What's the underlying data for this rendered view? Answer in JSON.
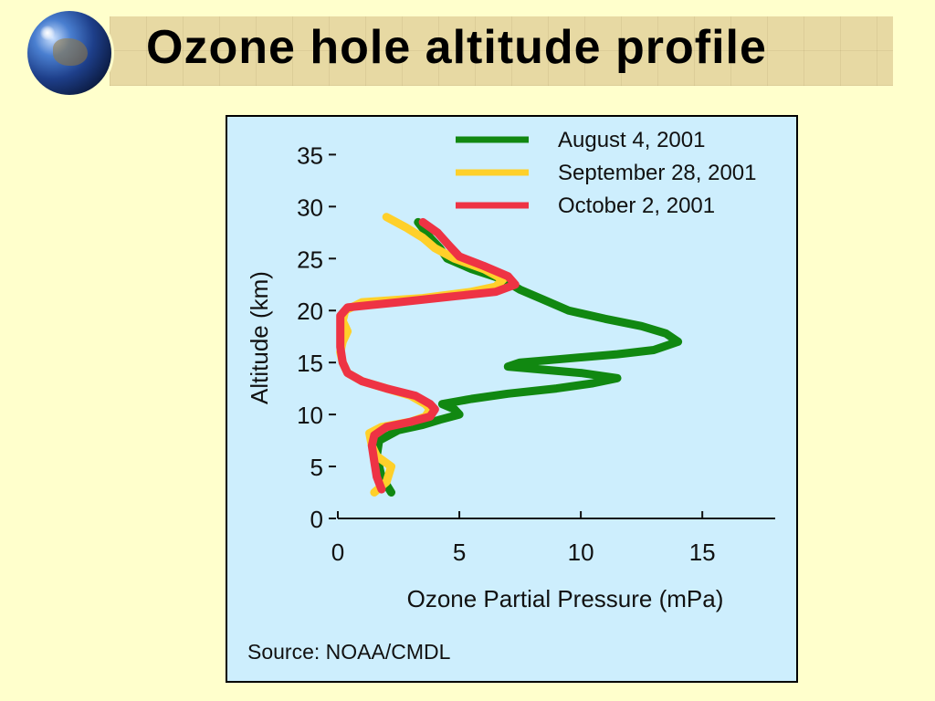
{
  "slide": {
    "title": "Ozone hole altitude profile"
  },
  "chart_data": {
    "type": "line",
    "xlabel": "Ozone Partial Pressure (mPa)",
    "ylabel": "Altitude (km)",
    "xlim": [
      0,
      18
    ],
    "ylim": [
      0,
      36
    ],
    "xticks": [
      0,
      5,
      10,
      15
    ],
    "yticks": [
      0,
      5,
      10,
      15,
      20,
      25,
      30,
      35
    ],
    "source": "Source: NOAA/CMDL",
    "legend_position": "top-right",
    "grid": false,
    "series": [
      {
        "name": "August 4, 2001",
        "color": "#118811",
        "points": [
          [
            2.2,
            2.5
          ],
          [
            1.8,
            4
          ],
          [
            1.6,
            6
          ],
          [
            1.7,
            7.5
          ],
          [
            2.5,
            8.5
          ],
          [
            3.5,
            9
          ],
          [
            4.2,
            9.5
          ],
          [
            5.0,
            10
          ],
          [
            4.8,
            10.5
          ],
          [
            4.3,
            11
          ],
          [
            5.5,
            11.5
          ],
          [
            7.0,
            12
          ],
          [
            9.0,
            12.5
          ],
          [
            10.5,
            13
          ],
          [
            11.5,
            13.5
          ],
          [
            10.0,
            14
          ],
          [
            8.5,
            14.3
          ],
          [
            7.0,
            14.6
          ],
          [
            7.5,
            15
          ],
          [
            9.0,
            15.3
          ],
          [
            11.5,
            15.8
          ],
          [
            13.0,
            16.2
          ],
          [
            14.0,
            17
          ],
          [
            13.5,
            17.8
          ],
          [
            12.5,
            18.5
          ],
          [
            11.0,
            19.2
          ],
          [
            9.5,
            20
          ],
          [
            8.5,
            21
          ],
          [
            7.5,
            22
          ],
          [
            6.8,
            23
          ],
          [
            5.5,
            24
          ],
          [
            4.5,
            25
          ],
          [
            4.2,
            26
          ],
          [
            3.8,
            27
          ],
          [
            3.3,
            28.5
          ]
        ]
      },
      {
        "name": "September 28, 2001",
        "color": "#ffd02a",
        "points": [
          [
            1.5,
            2.5
          ],
          [
            2.0,
            3.5
          ],
          [
            2.2,
            5
          ],
          [
            1.6,
            6
          ],
          [
            1.4,
            7
          ],
          [
            1.3,
            8.2
          ],
          [
            1.8,
            8.8
          ],
          [
            3.0,
            9.3
          ],
          [
            3.6,
            9.8
          ],
          [
            3.8,
            10.5
          ],
          [
            3.6,
            11
          ],
          [
            3.0,
            11.8
          ],
          [
            2.0,
            12.5
          ],
          [
            1.0,
            13.2
          ],
          [
            0.4,
            14
          ],
          [
            0.2,
            15
          ],
          [
            0.1,
            16
          ],
          [
            0.2,
            17
          ],
          [
            0.4,
            18
          ],
          [
            0.2,
            19
          ],
          [
            0.3,
            20
          ],
          [
            1.0,
            20.8
          ],
          [
            3.5,
            21.2
          ],
          [
            5.5,
            21.8
          ],
          [
            6.5,
            22.3
          ],
          [
            6.8,
            23
          ],
          [
            6.0,
            24
          ],
          [
            4.8,
            25
          ],
          [
            4.0,
            26
          ],
          [
            3.5,
            27
          ],
          [
            2.8,
            28
          ],
          [
            2.0,
            29
          ]
        ]
      },
      {
        "name": "October 2, 2001",
        "color": "#ee3344",
        "points": [
          [
            1.8,
            2.8
          ],
          [
            1.6,
            4
          ],
          [
            1.5,
            5.5
          ],
          [
            1.4,
            7
          ],
          [
            1.5,
            8
          ],
          [
            2.0,
            8.8
          ],
          [
            3.0,
            9.3
          ],
          [
            3.8,
            9.8
          ],
          [
            4.0,
            10.5
          ],
          [
            3.8,
            11
          ],
          [
            3.2,
            11.8
          ],
          [
            2.0,
            12.5
          ],
          [
            1.0,
            13.2
          ],
          [
            0.4,
            14
          ],
          [
            0.2,
            15
          ],
          [
            0.1,
            16.5
          ],
          [
            0.1,
            18
          ],
          [
            0.1,
            19.5
          ],
          [
            0.4,
            20.3
          ],
          [
            2.5,
            20.8
          ],
          [
            4.5,
            21.3
          ],
          [
            6.5,
            21.8
          ],
          [
            7.3,
            22.5
          ],
          [
            7.0,
            23.3
          ],
          [
            6.0,
            24.3
          ],
          [
            5.0,
            25.2
          ],
          [
            4.6,
            26.2
          ],
          [
            4.1,
            27.5
          ],
          [
            3.5,
            28.5
          ]
        ]
      }
    ]
  }
}
